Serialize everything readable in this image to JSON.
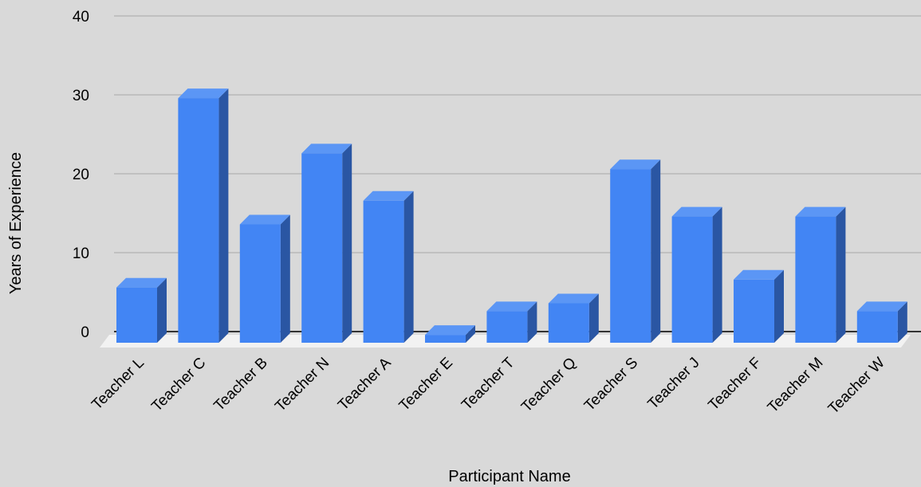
{
  "chart_data": {
    "type": "bar",
    "style": "3d",
    "categories": [
      "Teacher L",
      "Teacher C",
      "Teacher B",
      "Teacher N",
      "Teacher A",
      "Teacher E",
      "Teacher T",
      "Teacher Q",
      "Teacher S",
      "Teacher J",
      "Teacher F",
      "Teacher M",
      "Teacher W"
    ],
    "series": [
      {
        "values": [
          7,
          31,
          15,
          24,
          18,
          1,
          4,
          5,
          22,
          16,
          8,
          16,
          4
        ]
      }
    ],
    "xlabel": "Participant Name",
    "ylabel": "Years of Experience",
    "ylim": [
      0,
      40
    ],
    "yticks": [
      "0",
      "10",
      "20",
      "30",
      "40"
    ],
    "grid": true,
    "legend": "none",
    "colors": {
      "background": "#d9d9d9",
      "bar_front": "#4285f4",
      "bar_top": "#5b96f5",
      "bar_side": "#2a56a3",
      "gridline": "#a8a8a8",
      "floor": "#f2f2f2",
      "baseline": "#333333"
    }
  }
}
